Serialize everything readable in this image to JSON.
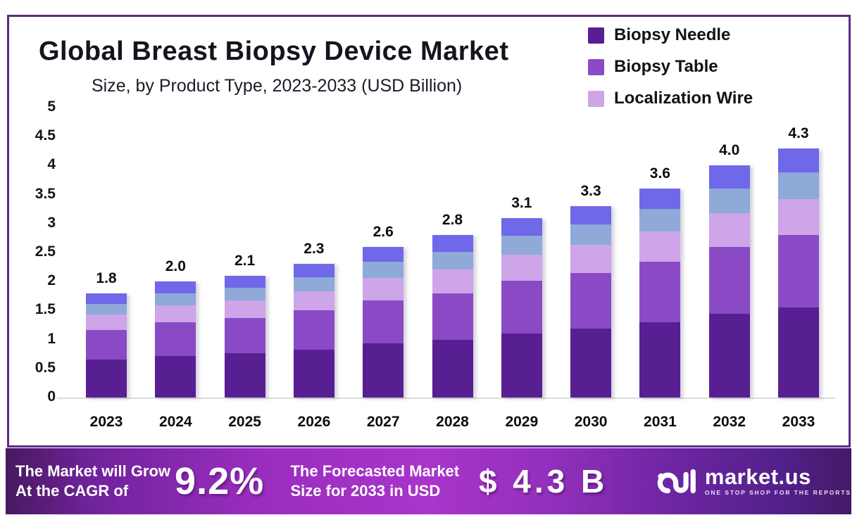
{
  "chart_data": {
    "type": "bar",
    "stacked": true,
    "title": "Global Breast Biopsy Device Market",
    "subtitle": "Size, by Product Type, 2023-2033 (USD Billion)",
    "categories": [
      "2023",
      "2024",
      "2025",
      "2026",
      "2027",
      "2028",
      "2029",
      "2030",
      "2031",
      "2032",
      "2033"
    ],
    "total_labels": [
      "1.8",
      "2.0",
      "2.1",
      "2.3",
      "2.6",
      "2.8",
      "3.1",
      "3.3",
      "3.6",
      "4.0",
      "4.3"
    ],
    "series": [
      {
        "name": "Biopsy Needle",
        "color": "#571f92",
        "in_legend": true,
        "values": [
          0.65,
          0.72,
          0.76,
          0.83,
          0.93,
          1.0,
          1.11,
          1.19,
          1.3,
          1.44,
          1.55
        ]
      },
      {
        "name": "Biopsy Table",
        "color": "#8a4ac5",
        "in_legend": true,
        "values": [
          0.52,
          0.58,
          0.61,
          0.67,
          0.75,
          0.8,
          0.9,
          0.96,
          1.04,
          1.16,
          1.25
        ]
      },
      {
        "name": "Localization Wire",
        "color": "#cda5e8",
        "in_legend": true,
        "values": [
          0.26,
          0.29,
          0.3,
          0.33,
          0.38,
          0.41,
          0.45,
          0.48,
          0.52,
          0.58,
          0.62
        ]
      },
      {
        "name": "(unlabeled) Steel Blue segment",
        "color": "#8fa9d9",
        "in_legend": false,
        "values": [
          0.19,
          0.21,
          0.22,
          0.25,
          0.28,
          0.3,
          0.33,
          0.35,
          0.39,
          0.43,
          0.46
        ]
      },
      {
        "name": "(unlabeled) Periwinkle segment",
        "color": "#6f68e8",
        "in_legend": false,
        "values": [
          0.18,
          0.2,
          0.21,
          0.22,
          0.26,
          0.29,
          0.31,
          0.32,
          0.35,
          0.39,
          0.42
        ]
      }
    ],
    "y_axis": {
      "min": 0,
      "max": 5,
      "step": 0.5,
      "tick_labels": [
        "0",
        "0.5",
        "1",
        "1.5",
        "2",
        "2.5",
        "3",
        "3.5",
        "4",
        "4.5",
        "5"
      ]
    },
    "legend_position": "top-right",
    "grid": false
  },
  "banner": {
    "left_line1": "The Market will Grow",
    "left_line2": "At the CAGR of",
    "cagr_value": "9.2%",
    "mid_line1": "The Forecasted Market",
    "mid_line2": "Size for 2033 in USD",
    "forecast_value": "$ 4.3 B",
    "logo_text": "market.us",
    "logo_tagline": "ONE STOP SHOP FOR THE REPORTS"
  },
  "colors": {
    "frame_border": "#5c2b7e",
    "axis_line": "#dcdcdc",
    "title_text": "#14141e",
    "banner_text": "#ffffff",
    "banner_gradient_left": "#47195e",
    "banner_gradient_mid": "#a934cb",
    "banner_gradient_right": "#441a66"
  }
}
